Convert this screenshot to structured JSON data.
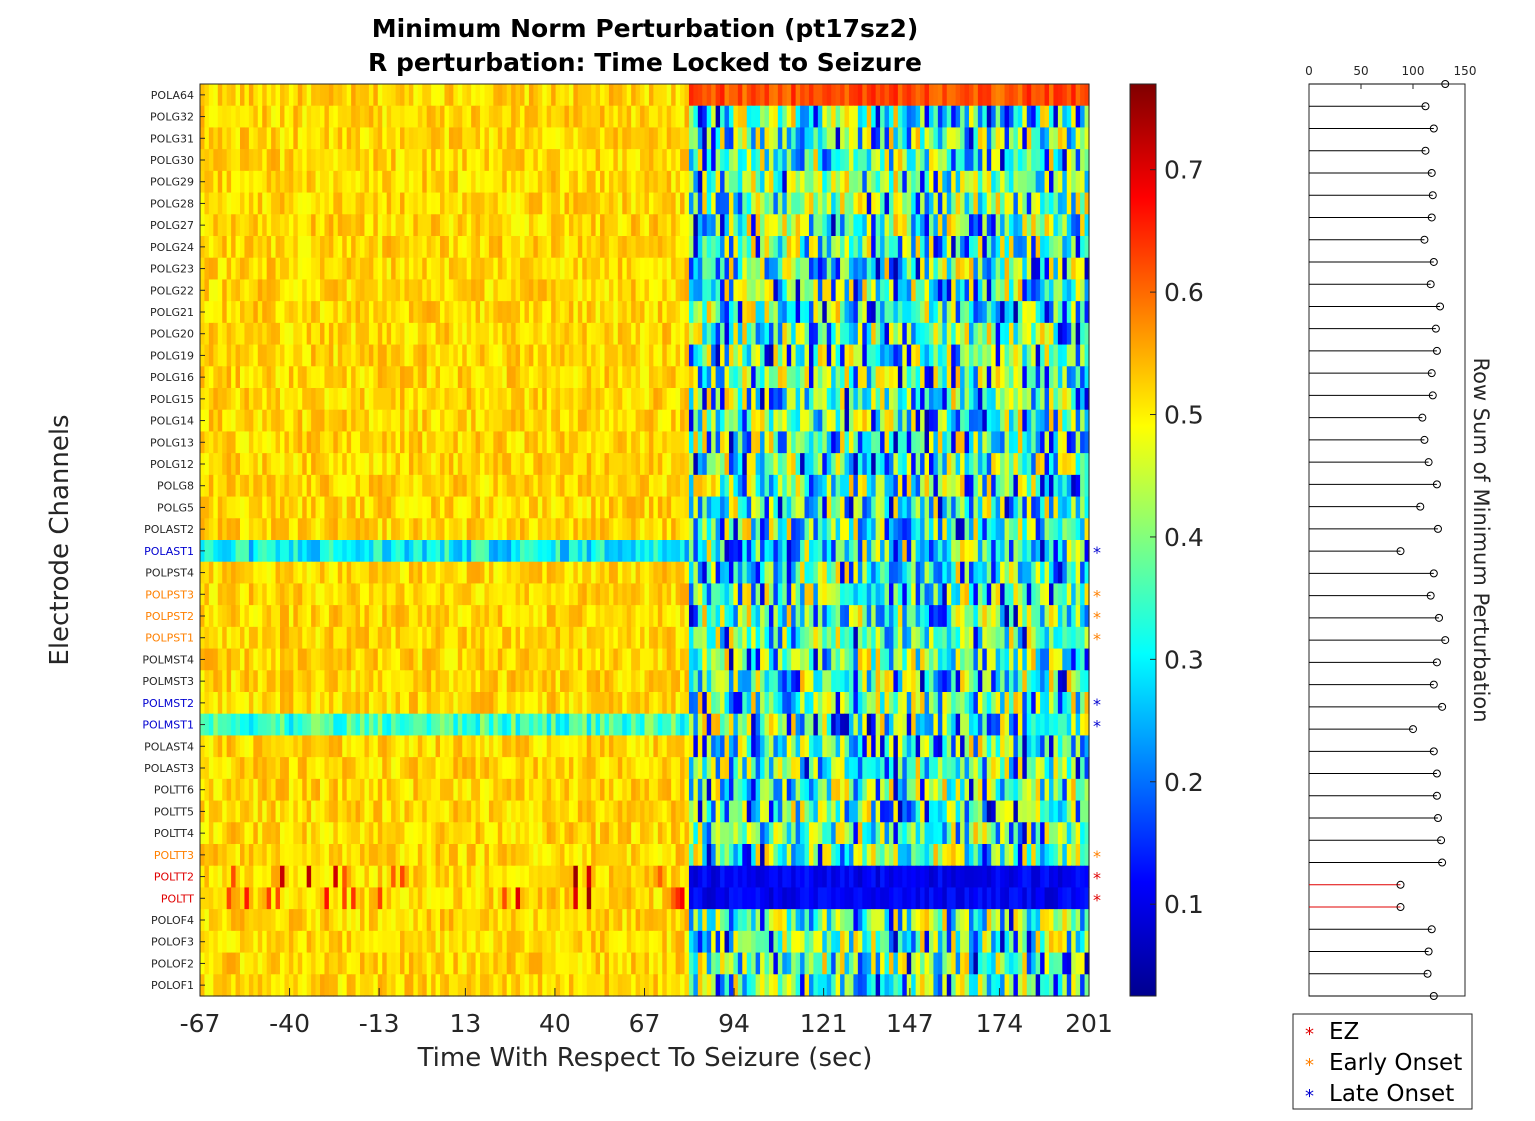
{
  "chart_data": [
    {
      "type": "heatmap",
      "title": "Minimum Norm Perturbation (pt17sz2)",
      "subtitle": "R perturbation:  Time Locked to Seizure",
      "xlabel": "Time With Respect To Seizure (sec)",
      "ylabel": "Electrode Channels",
      "xlim": [
        -67,
        201
      ],
      "x_ticks": [
        "-67",
        "-40",
        "-13",
        "13",
        "40",
        "67",
        "94",
        "121",
        "147",
        "174",
        "201"
      ],
      "colorbar": {
        "colormap": "jet",
        "range": [
          0.025,
          0.77
        ],
        "ticks": [
          "0.1",
          "0.2",
          "0.3",
          "0.4",
          "0.5",
          "0.6",
          "0.7"
        ]
      },
      "channels": [
        {
          "name": "POLA64",
          "class": "none"
        },
        {
          "name": "POLG32",
          "class": "none"
        },
        {
          "name": "POLG31",
          "class": "none"
        },
        {
          "name": "POLG30",
          "class": "none"
        },
        {
          "name": "POLG29",
          "class": "none"
        },
        {
          "name": "POLG28",
          "class": "none"
        },
        {
          "name": "POLG27",
          "class": "none"
        },
        {
          "name": "POLG24",
          "class": "none"
        },
        {
          "name": "POLG23",
          "class": "none"
        },
        {
          "name": "POLG22",
          "class": "none"
        },
        {
          "name": "POLG21",
          "class": "none"
        },
        {
          "name": "POLG20",
          "class": "none"
        },
        {
          "name": "POLG19",
          "class": "none"
        },
        {
          "name": "POLG16",
          "class": "none"
        },
        {
          "name": "POLG15",
          "class": "none"
        },
        {
          "name": "POLG14",
          "class": "none"
        },
        {
          "name": "POLG13",
          "class": "none"
        },
        {
          "name": "POLG12",
          "class": "none"
        },
        {
          "name": "POLG8",
          "class": "none"
        },
        {
          "name": "POLG5",
          "class": "none"
        },
        {
          "name": "POLAST2",
          "class": "none"
        },
        {
          "name": "POLAST1",
          "class": "late"
        },
        {
          "name": "POLPST4",
          "class": "none"
        },
        {
          "name": "POLPST3",
          "class": "early"
        },
        {
          "name": "POLPST2",
          "class": "early"
        },
        {
          "name": "POLPST1",
          "class": "early"
        },
        {
          "name": "POLMST4",
          "class": "none"
        },
        {
          "name": "POLMST3",
          "class": "none"
        },
        {
          "name": "POLMST2",
          "class": "late"
        },
        {
          "name": "POLMST1",
          "class": "late"
        },
        {
          "name": "POLAST4",
          "class": "none"
        },
        {
          "name": "POLAST3",
          "class": "none"
        },
        {
          "name": "POLTT6",
          "class": "none"
        },
        {
          "name": "POLTT5",
          "class": "none"
        },
        {
          "name": "POLTT4",
          "class": "none"
        },
        {
          "name": "POLTT3",
          "class": "early"
        },
        {
          "name": "POLTT2",
          "class": "ez"
        },
        {
          "name": "POLTT",
          "class": "ez"
        },
        {
          "name": "POLOF4",
          "class": "none"
        },
        {
          "name": "POLOF3",
          "class": "none"
        },
        {
          "name": "POLOF2",
          "class": "none"
        },
        {
          "name": "POLOF1",
          "class": "none"
        }
      ],
      "approx_pattern": {
        "pre_seizure_value": 0.52,
        "seizure_onset_sec": 80,
        "post_onset_range": [
          0.05,
          0.55
        ],
        "POLA64_post_onset": 0.62,
        "POLAST1_pre": 0.3,
        "POLMST1_pre": 0.35,
        "POLTT2_post": 0.08,
        "POLTT_post": 0.08
      }
    },
    {
      "type": "stem",
      "ylabel": "Row Sum of Minimum Perturbation",
      "xlim": [
        0,
        150
      ],
      "x_ticks": [
        "0",
        "50",
        "100",
        "150"
      ],
      "values": [
        131,
        112,
        120,
        112,
        118,
        119,
        118,
        111,
        120,
        117,
        126,
        122,
        123,
        118,
        119,
        109,
        111,
        115,
        123,
        107,
        124,
        88,
        120,
        117,
        125,
        131,
        123,
        120,
        128,
        100,
        120,
        123,
        123,
        124,
        127,
        128,
        88,
        88,
        118,
        115,
        114,
        120
      ]
    }
  ],
  "legend": {
    "items": [
      {
        "label": "EZ",
        "color": "#e00000"
      },
      {
        "label": "Early Onset",
        "color": "#ff8000"
      },
      {
        "label": "Late Onset",
        "color": "#0000d0"
      }
    ]
  },
  "colors": {
    "ez": "#e00000",
    "early": "#ff8000",
    "late": "#0000d0",
    "none": "#262626",
    "stem_default": "#000000",
    "stem_ez": "#e00000"
  }
}
